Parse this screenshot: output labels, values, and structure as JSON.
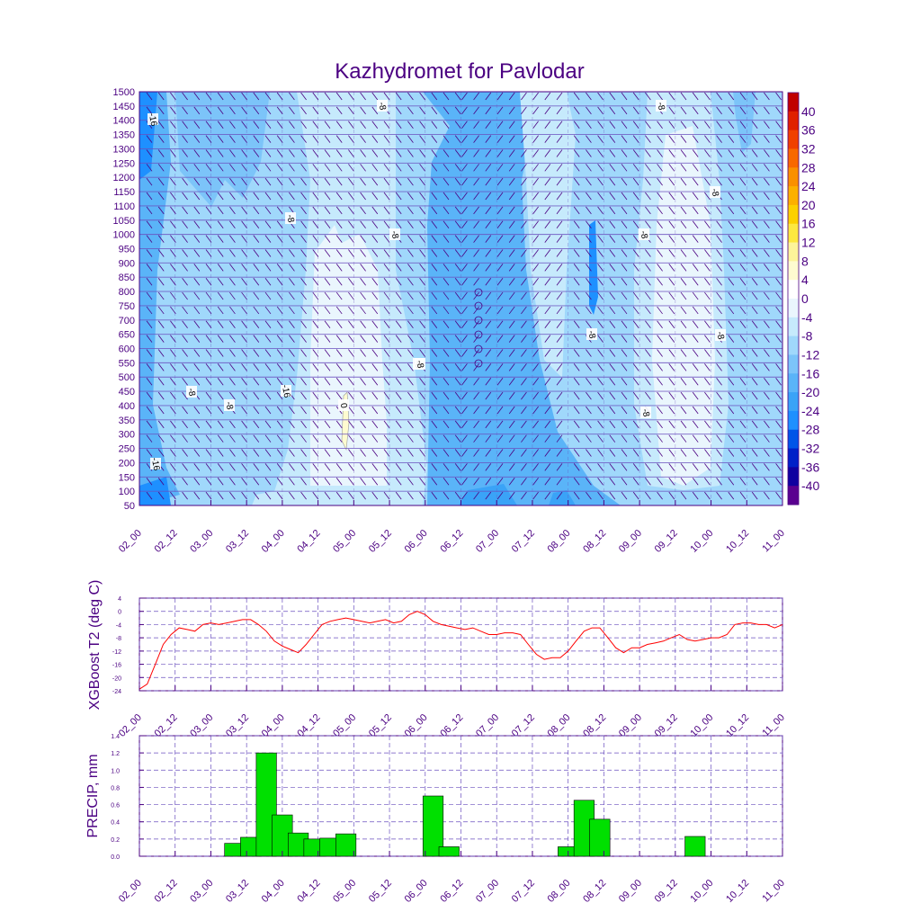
{
  "colors": {
    "frame": "#4b0082",
    "tline": "#ff0000",
    "bar": "#00e000",
    "grid": "#6a4fbf",
    "levels": [
      "#1e90ff",
      "#3aa3f7",
      "#5ab4f8",
      "#7cc4f9",
      "#a0d8fb",
      "#c6eafc",
      "#eaf6fd"
    ]
  },
  "chart_data": [
    {
      "type": "heatmap",
      "title": "Kazhydromet for Pavlodar",
      "ylabel": "",
      "y_ticks": [
        1500,
        1450,
        1400,
        1350,
        1300,
        1250,
        1200,
        1150,
        1100,
        1050,
        1000,
        950,
        900,
        850,
        800,
        750,
        700,
        650,
        600,
        550,
        500,
        450,
        400,
        350,
        300,
        250,
        200,
        150,
        100,
        50
      ],
      "x_ticks": [
        "02_00",
        "02_12",
        "03_00",
        "03_12",
        "04_00",
        "04_12",
        "05_00",
        "05_12",
        "06_00",
        "06_12",
        "07_00",
        "07_12",
        "08_00",
        "08_12",
        "09_00",
        "09_12",
        "10_00",
        "10_12",
        "11_00"
      ],
      "colorbar_labels": [
        "40",
        "36",
        "32",
        "28",
        "24",
        "20",
        "16",
        "12",
        "8",
        "4",
        "0",
        "-4",
        "-8",
        "-12",
        "-16",
        "-20",
        "-24",
        "-28",
        "-32",
        "-36",
        "-40"
      ],
      "colorbar_colors": [
        "#c00000",
        "#e02000",
        "#f04000",
        "#f86800",
        "#fa9000",
        "#fcb000",
        "#fcd000",
        "#fde840",
        "#fdf49a",
        "#fefbd0",
        "#ffffff",
        "#eaf6fd",
        "#c6eafc",
        "#a0d8fb",
        "#7cc4f9",
        "#5ab4f8",
        "#3aa3f7",
        "#1e90ff",
        "#0055e8",
        "#0020c8",
        "#1000a0",
        "#5a0090"
      ],
      "contour_labels": [
        "-16",
        "-8",
        "-8",
        "-8",
        "-8",
        "-8",
        "0",
        "-8",
        "-8",
        "-8",
        "-8",
        "-8",
        "-16",
        "-8",
        "-8",
        "-16",
        "-8"
      ]
    },
    {
      "type": "line",
      "ylabel": "XGBoost T2 (deg C)",
      "ylim": [
        -24,
        4
      ],
      "y_ticks": [
        "4",
        "0",
        "-4",
        "-8",
        "-12",
        "-16",
        "-20",
        "-24"
      ],
      "x_ticks": [
        "02_00",
        "02_12",
        "03_00",
        "03_12",
        "04_00",
        "04_12",
        "05_00",
        "05_12",
        "06_00",
        "06_12",
        "07_00",
        "07_12",
        "08_00",
        "08_12",
        "09_00",
        "09_12",
        "10_00",
        "10_12",
        "11_00"
      ],
      "x": [
        0,
        0.33,
        0.67,
        1,
        1.33,
        1.67,
        2,
        2.33,
        2.67,
        3,
        3.33,
        3.67,
        4,
        4.33,
        4.67,
        5,
        5.33,
        5.67,
        6,
        6.33,
        6.67,
        7,
        7.33,
        7.67,
        8,
        8.33,
        8.67,
        9,
        9.33,
        9.67,
        10,
        10.33,
        10.67,
        11,
        11.33,
        11.67,
        12,
        12.33,
        12.67,
        13,
        13.33,
        13.67,
        14,
        14.33,
        14.67,
        15,
        15.33,
        15.67,
        16,
        16.33,
        16.67,
        17,
        17.33,
        17.67,
        18,
        18.33,
        18.67,
        19,
        19.33,
        19.67,
        20,
        20.33,
        20.67,
        21,
        21.33,
        21.67,
        22,
        22.33,
        22.67,
        23,
        23.33,
        23.67,
        24,
        24.33,
        24.67,
        25,
        25.33,
        25.67,
        26,
        26.33,
        26.67,
        27
      ],
      "series": [
        {
          "name": "T2",
          "values": [
            -23.5,
            -22,
            -16,
            -10,
            -7,
            -5,
            -5.5,
            -6,
            -4,
            -3.5,
            -4,
            -3.5,
            -3,
            -2.5,
            -2.5,
            -4,
            -6,
            -9,
            -10.5,
            -11.5,
            -12.5,
            -10,
            -7,
            -4,
            -3,
            -2.5,
            -2,
            -2.5,
            -3,
            -3.5,
            -3,
            -2.5,
            -3.5,
            -3,
            -1,
            0,
            -1,
            -3,
            -4,
            -4.5,
            -5,
            -5.5,
            -5,
            -6,
            -7,
            -7,
            -6.5,
            -6.5,
            -7,
            -10,
            -13,
            -14.5,
            -14,
            -14,
            -12,
            -9,
            -6,
            -5,
            -5,
            -8,
            -11,
            -12.5,
            -11,
            -11,
            -10,
            -9.5,
            -9,
            -8,
            -7,
            -8.5,
            -9,
            -8.5,
            -8,
            -8,
            -7,
            -4,
            -3.5,
            -3.5,
            -4,
            -4,
            -5,
            -4
          ]
        }
      ]
    },
    {
      "type": "bar",
      "ylabel": "PRECIP, mm",
      "ylim": [
        0,
        1.4
      ],
      "y_ticks": [
        "1.4",
        "1.2",
        "1.0",
        "0.8",
        "0.6",
        "0.4",
        "0.2",
        "0.0"
      ],
      "x_ticks": [
        "02_00",
        "02_12",
        "03_00",
        "03_12",
        "04_00",
        "04_12",
        "05_00",
        "05_12",
        "06_00",
        "06_12",
        "07_00",
        "07_12",
        "08_00",
        "08_12",
        "09_00",
        "09_12",
        "10_00",
        "10_12",
        "11_00"
      ],
      "x": [
        4,
        4.67,
        5.33,
        6,
        6.67,
        7.33,
        8,
        8.67,
        9.33,
        12.33,
        13,
        18,
        18.67,
        19.33,
        23.33
      ],
      "values": [
        0.15,
        0.22,
        1.2,
        0.48,
        0.27,
        0.2,
        0.21,
        0.26,
        0,
        0.7,
        0.11,
        0.11,
        0.65,
        0.43,
        0.23
      ]
    }
  ]
}
